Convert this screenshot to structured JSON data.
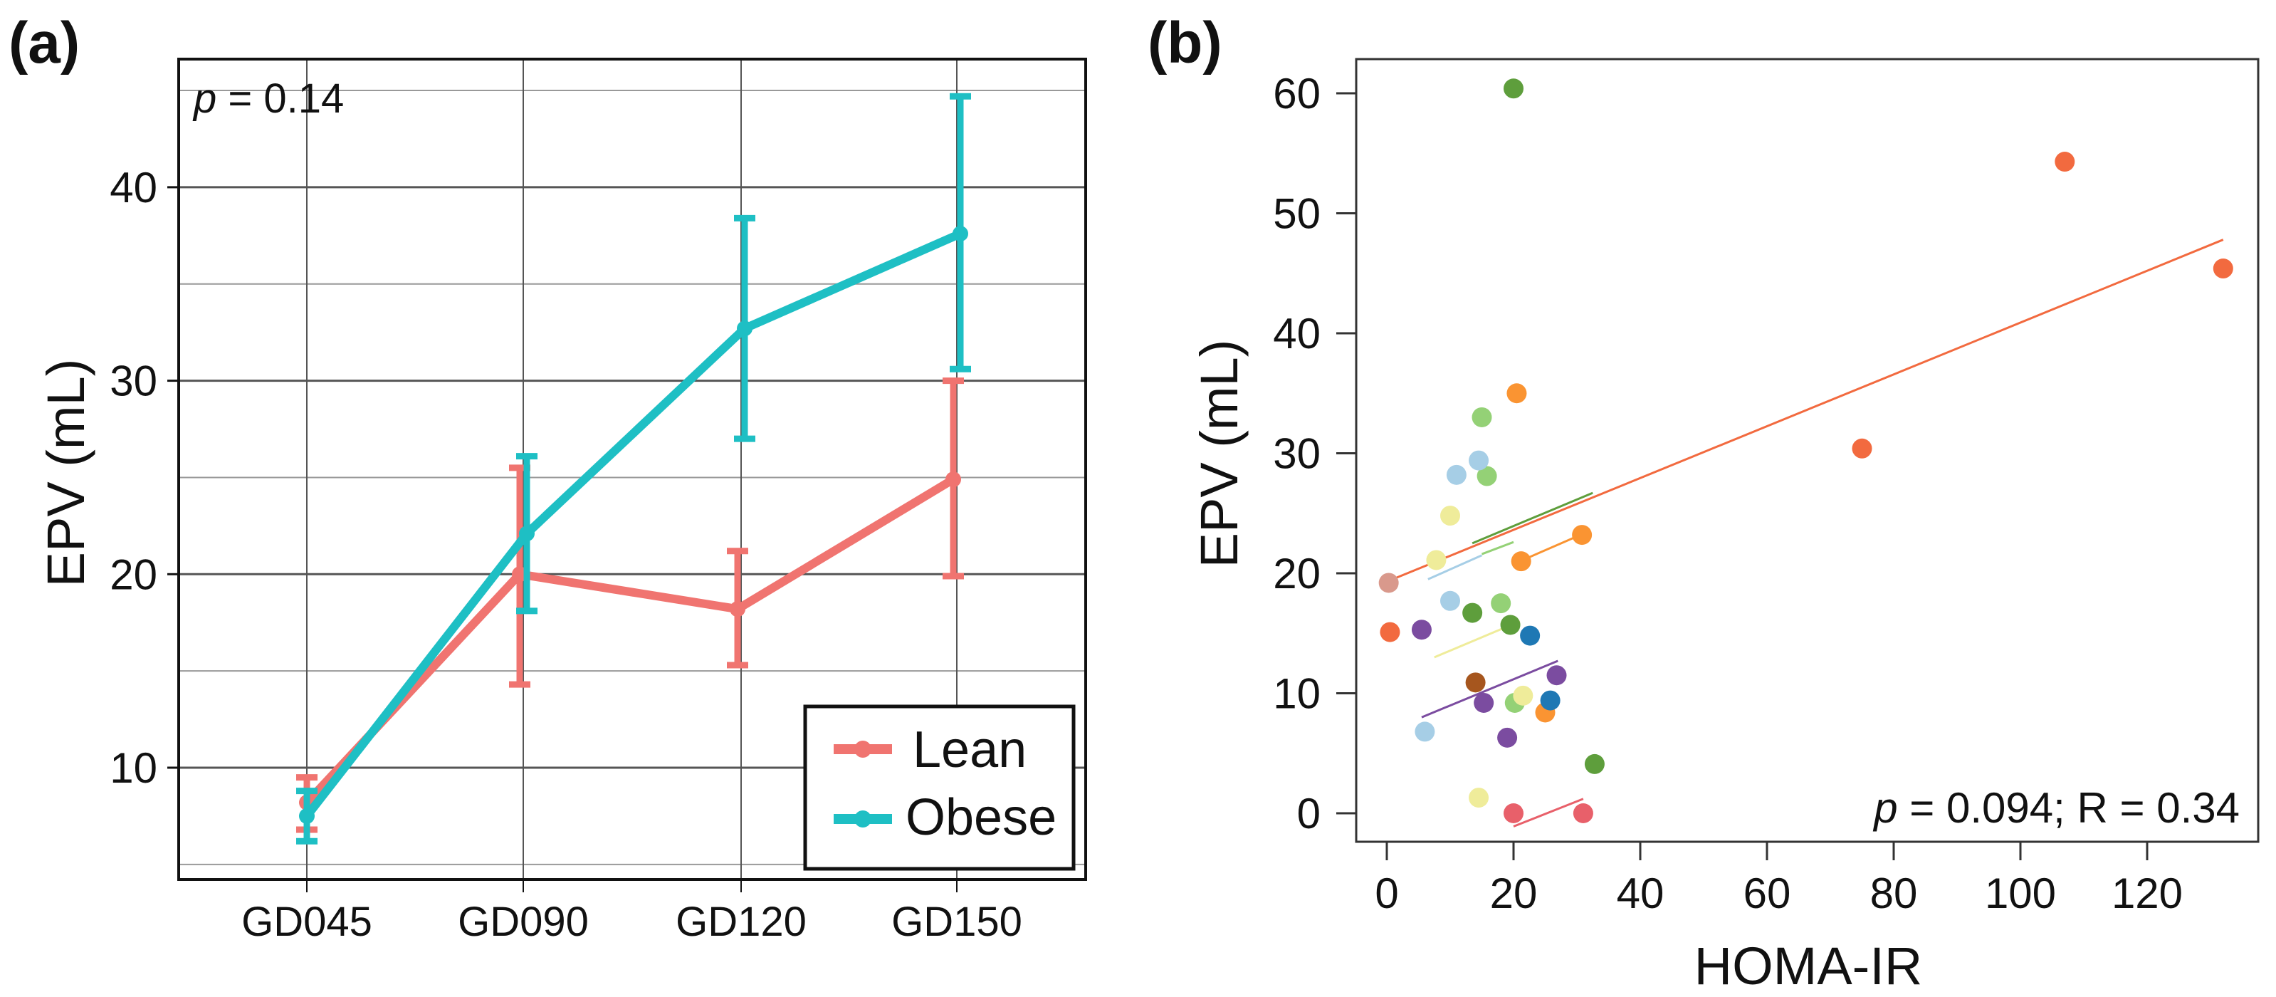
{
  "chart_data": [
    {
      "panel_label": "(a)",
      "type": "line",
      "title": "",
      "xlabel": "",
      "ylabel": "EPV (mL)",
      "categories": [
        "GD045",
        "GD090",
        "GD120",
        "GD150"
      ],
      "ylim": [
        2,
        46.5
      ],
      "yticks": [
        10,
        20,
        30,
        40
      ],
      "grid": true,
      "annotation": {
        "italic": "p",
        "text": " = 0.14"
      },
      "legend_position": "bottom-right",
      "series": [
        {
          "name": "Lean",
          "color": "#F07470",
          "values": [
            8.2,
            20.0,
            18.2,
            24.9
          ],
          "err_low": [
            6.8,
            14.3,
            15.3,
            19.9
          ],
          "err_high": [
            9.5,
            25.5,
            21.2,
            30.0
          ]
        },
        {
          "name": "Obese",
          "color": "#1EBFC4",
          "values": [
            7.5,
            22.1,
            32.7,
            37.6
          ],
          "err_low": [
            6.2,
            18.1,
            27.0,
            30.6
          ],
          "err_high": [
            8.8,
            26.1,
            38.4,
            44.7
          ]
        }
      ]
    },
    {
      "panel_label": "(b)",
      "type": "scatter",
      "title": "",
      "xlabel": "HOMA-IR",
      "ylabel": "EPV (mL)",
      "xlim": [
        -5,
        137
      ],
      "ylim": [
        -3,
        62.5
      ],
      "xticks": [
        0,
        20,
        40,
        60,
        80,
        100,
        120
      ],
      "yticks": [
        0,
        10,
        20,
        30,
        40,
        50,
        60
      ],
      "grid": false,
      "annotation": {
        "italic": "p",
        "text": " = 0.094; R = 0.34"
      },
      "groups": [
        {
          "color": "#F26A3F",
          "points": [
            [
              107,
              54.3
            ],
            [
              132,
              45.4
            ],
            [
              75,
              30.4
            ],
            [
              0.5,
              15.1
            ]
          ]
        },
        {
          "color": "#FA9432",
          "points": [
            [
              20.5,
              35.0
            ],
            [
              30.8,
              23.2
            ],
            [
              21.2,
              21.0
            ],
            [
              25.0,
              8.4
            ]
          ],
          "fit": [
            [
              21,
              21.0
            ],
            [
              31,
              23.3
            ]
          ]
        },
        {
          "color": "#94D176",
          "points": [
            [
              15.0,
              33.0
            ],
            [
              15.8,
              28.1
            ],
            [
              18.0,
              17.5
            ],
            [
              20.2,
              9.2
            ]
          ],
          "fit": [
            [
              15,
              21.6
            ],
            [
              20,
              22.6
            ]
          ]
        },
        {
          "color": "#A6CEE6",
          "points": [
            [
              14.5,
              29.4
            ],
            [
              11.0,
              28.2
            ],
            [
              10.0,
              17.7
            ],
            [
              6.0,
              6.8
            ]
          ],
          "fit": [
            [
              6.5,
              19.5
            ],
            [
              15,
              21.5
            ]
          ]
        },
        {
          "color": "#EFEC9A",
          "points": [
            [
              10.0,
              24.8
            ],
            [
              7.8,
              21.1
            ],
            [
              21.5,
              9.8
            ],
            [
              14.5,
              1.3
            ]
          ],
          "fit": [
            [
              7.5,
              13.0
            ],
            [
              21,
              16.0
            ]
          ]
        },
        {
          "color": "#D9998C",
          "points": [
            [
              0.3,
              19.2
            ]
          ]
        },
        {
          "color": "#5E9E3C",
          "points": [
            [
              20.0,
              60.4
            ],
            [
              13.5,
              16.7
            ],
            [
              19.5,
              15.7
            ],
            [
              32.8,
              4.1
            ]
          ],
          "fit": [
            [
              13.5,
              22.5
            ],
            [
              32.5,
              26.7
            ]
          ]
        },
        {
          "color": "#7B4CA0",
          "points": [
            [
              5.5,
              15.3
            ],
            [
              26.8,
              11.5
            ],
            [
              15.3,
              9.2
            ],
            [
              19.0,
              6.3
            ]
          ],
          "fit": [
            [
              5.5,
              8.0
            ],
            [
              27,
              12.7
            ]
          ]
        },
        {
          "color": "#1F78B4",
          "points": [
            [
              22.6,
              14.8
            ],
            [
              25.8,
              9.4
            ]
          ]
        },
        {
          "color": "#A6561E",
          "points": [
            [
              14.0,
              10.9
            ]
          ]
        },
        {
          "color": "#E8606A",
          "points": [
            [
              20.0,
              0.0
            ],
            [
              31.0,
              0.0
            ]
          ],
          "fit": [
            [
              20,
              -1.1
            ],
            [
              31,
              1.2
            ]
          ]
        }
      ],
      "overall_fit": {
        "color": "#F26A3F",
        "line": [
          [
            0,
            19.3
          ],
          [
            132,
            47.8
          ]
        ]
      }
    }
  ]
}
